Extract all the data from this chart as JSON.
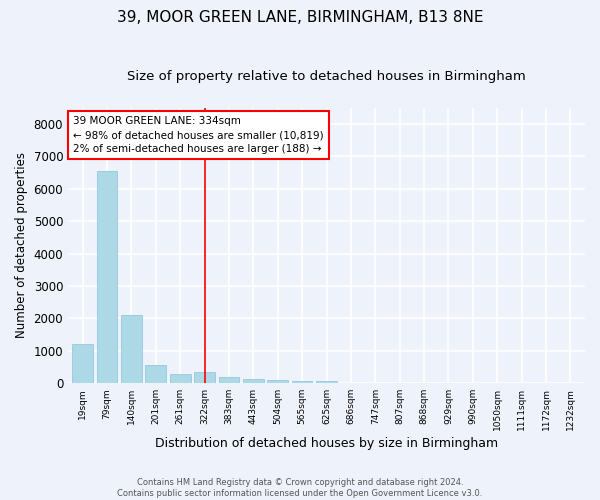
{
  "title": "39, MOOR GREEN LANE, BIRMINGHAM, B13 8NE",
  "subtitle": "Size of property relative to detached houses in Birmingham",
  "xlabel": "Distribution of detached houses by size in Birmingham",
  "ylabel": "Number of detached properties",
  "bar_color": "#add8e6",
  "bar_edge_color": "#89c4e1",
  "vline_color": "red",
  "vline_x_index": 5,
  "annotation_text": "39 MOOR GREEN LANE: 334sqm\n← 98% of detached houses are smaller (10,819)\n2% of semi-detached houses are larger (188) →",
  "annotation_box_color": "red",
  "footer_line1": "Contains HM Land Registry data © Crown copyright and database right 2024.",
  "footer_line2": "Contains public sector information licensed under the Open Government Licence v3.0.",
  "categories": [
    "19sqm",
    "79sqm",
    "140sqm",
    "201sqm",
    "261sqm",
    "322sqm",
    "383sqm",
    "443sqm",
    "504sqm",
    "565sqm",
    "625sqm",
    "686sqm",
    "747sqm",
    "807sqm",
    "868sqm",
    "929sqm",
    "990sqm",
    "1050sqm",
    "1111sqm",
    "1172sqm",
    "1232sqm"
  ],
  "values": [
    1200,
    6550,
    2100,
    550,
    270,
    350,
    190,
    120,
    80,
    50,
    50,
    0,
    0,
    0,
    0,
    0,
    0,
    0,
    0,
    0,
    0
  ],
  "ylim": [
    0,
    8500
  ],
  "yticks": [
    0,
    1000,
    2000,
    3000,
    4000,
    5000,
    6000,
    7000,
    8000
  ],
  "background_color": "#eef2fb",
  "grid_color": "#ffffff",
  "title_fontsize": 11,
  "subtitle_fontsize": 9.5,
  "xlabel_fontsize": 9,
  "ylabel_fontsize": 8.5
}
